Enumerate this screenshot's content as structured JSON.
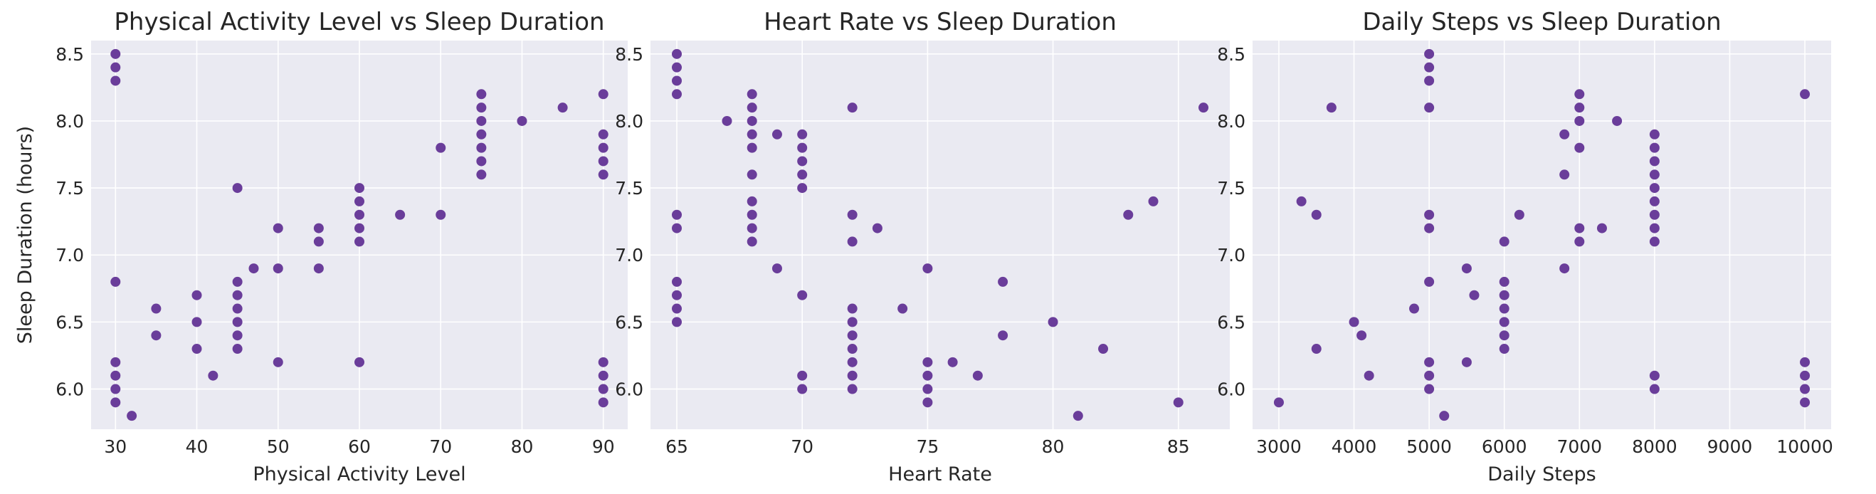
{
  "figure": {
    "background": "#ffffff",
    "axes_background": "#eaeaf2",
    "grid_color": "#ffffff",
    "marker_color": "#6a3d9a"
  },
  "chart_data": [
    {
      "type": "scatter",
      "title": "Physical Activity Level vs Sleep Duration",
      "xlabel": "Physical Activity Level",
      "ylabel": "Sleep Duration (hours)",
      "xlim": [
        27.0,
        93.0
      ],
      "ylim": [
        5.7,
        8.6
      ],
      "xticks": [
        30,
        40,
        50,
        60,
        70,
        80,
        90
      ],
      "yticks": [
        6.0,
        6.5,
        7.0,
        7.5,
        8.0,
        8.5
      ],
      "grid": true,
      "points": [
        [
          30,
          8.5
        ],
        [
          30,
          8.4
        ],
        [
          30,
          8.3
        ],
        [
          30,
          6.8
        ],
        [
          30,
          6.2
        ],
        [
          30,
          6.1
        ],
        [
          30,
          6.0
        ],
        [
          30,
          5.9
        ],
        [
          32,
          5.8
        ],
        [
          35,
          6.6
        ],
        [
          35,
          6.4
        ],
        [
          40,
          6.7
        ],
        [
          40,
          6.5
        ],
        [
          40,
          6.3
        ],
        [
          42,
          6.1
        ],
        [
          45,
          7.5
        ],
        [
          45,
          6.8
        ],
        [
          45,
          6.7
        ],
        [
          45,
          6.6
        ],
        [
          45,
          6.5
        ],
        [
          45,
          6.4
        ],
        [
          45,
          6.3
        ],
        [
          47,
          6.9
        ],
        [
          50,
          7.2
        ],
        [
          50,
          6.9
        ],
        [
          50,
          6.2
        ],
        [
          55,
          7.2
        ],
        [
          55,
          7.1
        ],
        [
          55,
          6.9
        ],
        [
          60,
          7.5
        ],
        [
          60,
          7.4
        ],
        [
          60,
          7.3
        ],
        [
          60,
          7.2
        ],
        [
          60,
          7.1
        ],
        [
          60,
          6.2
        ],
        [
          65,
          7.3
        ],
        [
          70,
          7.8
        ],
        [
          70,
          7.3
        ],
        [
          75,
          8.2
        ],
        [
          75,
          8.1
        ],
        [
          75,
          8.0
        ],
        [
          75,
          7.9
        ],
        [
          75,
          7.8
        ],
        [
          75,
          7.7
        ],
        [
          75,
          7.6
        ],
        [
          80,
          8.0
        ],
        [
          85,
          8.1
        ],
        [
          90,
          8.2
        ],
        [
          90,
          7.9
        ],
        [
          90,
          7.8
        ],
        [
          90,
          7.7
        ],
        [
          90,
          7.6
        ],
        [
          90,
          6.2
        ],
        [
          90,
          6.1
        ],
        [
          90,
          6.0
        ],
        [
          90,
          5.9
        ]
      ]
    },
    {
      "type": "scatter",
      "title": "Heart Rate vs Sleep Duration",
      "xlabel": "Heart Rate",
      "ylabel": "",
      "xlim": [
        63.95,
        87.05
      ],
      "ylim": [
        5.7,
        8.6
      ],
      "xticks": [
        65,
        70,
        75,
        80,
        85
      ],
      "yticks": [
        6.0,
        6.5,
        7.0,
        7.5,
        8.0,
        8.5
      ],
      "grid": true,
      "points": [
        [
          65,
          8.5
        ],
        [
          65,
          8.4
        ],
        [
          65,
          8.3
        ],
        [
          65,
          8.2
        ],
        [
          65,
          7.3
        ],
        [
          65,
          7.2
        ],
        [
          65,
          6.8
        ],
        [
          65,
          6.7
        ],
        [
          65,
          6.6
        ],
        [
          65,
          6.5
        ],
        [
          67,
          8.0
        ],
        [
          68,
          8.2
        ],
        [
          68,
          8.1
        ],
        [
          68,
          8.0
        ],
        [
          68,
          7.9
        ],
        [
          68,
          7.8
        ],
        [
          68,
          7.6
        ],
        [
          68,
          7.4
        ],
        [
          68,
          7.3
        ],
        [
          68,
          7.2
        ],
        [
          68,
          7.1
        ],
        [
          69,
          7.9
        ],
        [
          69,
          6.9
        ],
        [
          70,
          7.9
        ],
        [
          70,
          7.8
        ],
        [
          70,
          7.7
        ],
        [
          70,
          7.6
        ],
        [
          70,
          7.5
        ],
        [
          70,
          6.7
        ],
        [
          70,
          6.1
        ],
        [
          70,
          6.0
        ],
        [
          72,
          8.1
        ],
        [
          72,
          7.3
        ],
        [
          72,
          7.1
        ],
        [
          72,
          6.6
        ],
        [
          72,
          6.5
        ],
        [
          72,
          6.4
        ],
        [
          72,
          6.3
        ],
        [
          72,
          6.2
        ],
        [
          72,
          6.1
        ],
        [
          72,
          6.0
        ],
        [
          73,
          7.2
        ],
        [
          74,
          6.6
        ],
        [
          75,
          6.9
        ],
        [
          75,
          6.2
        ],
        [
          75,
          6.1
        ],
        [
          75,
          6.0
        ],
        [
          75,
          5.9
        ],
        [
          76,
          6.2
        ],
        [
          77,
          6.1
        ],
        [
          78,
          6.8
        ],
        [
          78,
          6.4
        ],
        [
          80,
          6.5
        ],
        [
          81,
          5.8
        ],
        [
          82,
          6.3
        ],
        [
          83,
          7.3
        ],
        [
          84,
          7.4
        ],
        [
          85,
          5.9
        ],
        [
          86,
          8.1
        ]
      ]
    },
    {
      "type": "scatter",
      "title": "Daily Steps vs Sleep Duration",
      "xlabel": "Daily Steps",
      "ylabel": "",
      "xlim": [
        2650,
        10350
      ],
      "ylim": [
        5.7,
        8.6
      ],
      "xticks": [
        3000,
        4000,
        5000,
        6000,
        7000,
        8000,
        9000,
        10000
      ],
      "yticks": [
        6.0,
        6.5,
        7.0,
        7.5,
        8.0,
        8.5
      ],
      "grid": true,
      "points": [
        [
          3000,
          5.9
        ],
        [
          3300,
          7.4
        ],
        [
          3500,
          7.3
        ],
        [
          3500,
          6.3
        ],
        [
          3700,
          8.1
        ],
        [
          4000,
          6.5
        ],
        [
          4100,
          6.4
        ],
        [
          4200,
          6.1
        ],
        [
          4800,
          6.6
        ],
        [
          5000,
          8.5
        ],
        [
          5000,
          8.4
        ],
        [
          5000,
          8.3
        ],
        [
          5000,
          8.1
        ],
        [
          5000,
          7.3
        ],
        [
          5000,
          7.2
        ],
        [
          5000,
          6.8
        ],
        [
          5000,
          6.2
        ],
        [
          5000,
          6.1
        ],
        [
          5000,
          6.0
        ],
        [
          5200,
          5.8
        ],
        [
          5500,
          6.9
        ],
        [
          5500,
          6.2
        ],
        [
          5600,
          6.7
        ],
        [
          6000,
          7.1
        ],
        [
          6000,
          6.8
        ],
        [
          6000,
          6.7
        ],
        [
          6000,
          6.6
        ],
        [
          6000,
          6.5
        ],
        [
          6000,
          6.4
        ],
        [
          6000,
          6.3
        ],
        [
          6200,
          7.3
        ],
        [
          6800,
          7.9
        ],
        [
          6800,
          7.6
        ],
        [
          6800,
          6.9
        ],
        [
          7000,
          8.2
        ],
        [
          7000,
          8.1
        ],
        [
          7000,
          8.0
        ],
        [
          7000,
          7.8
        ],
        [
          7000,
          7.2
        ],
        [
          7000,
          7.1
        ],
        [
          7300,
          7.2
        ],
        [
          7500,
          8.0
        ],
        [
          8000,
          7.9
        ],
        [
          8000,
          7.8
        ],
        [
          8000,
          7.7
        ],
        [
          8000,
          7.6
        ],
        [
          8000,
          7.5
        ],
        [
          8000,
          7.4
        ],
        [
          8000,
          7.3
        ],
        [
          8000,
          7.2
        ],
        [
          8000,
          7.1
        ],
        [
          8000,
          6.1
        ],
        [
          8000,
          6.0
        ],
        [
          10000,
          8.2
        ],
        [
          10000,
          6.2
        ],
        [
          10000,
          6.1
        ],
        [
          10000,
          6.0
        ],
        [
          10000,
          5.9
        ]
      ]
    }
  ]
}
